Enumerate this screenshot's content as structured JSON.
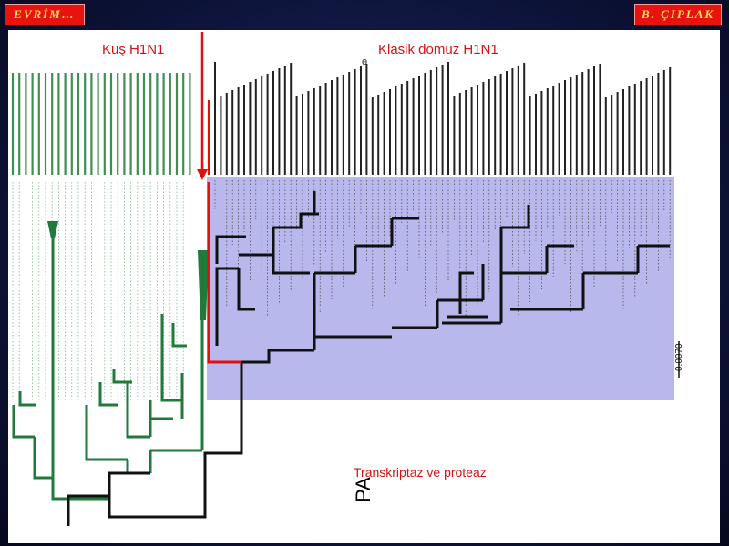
{
  "header": {
    "left_badge": "EVRİM…",
    "right_badge": "B. ÇIPLAK"
  },
  "labels": {
    "avian": "Kuş H1N1",
    "swine": "Klasik domuz H1N1",
    "caption": "Transkriptaz ve proteaz",
    "segment": "PA",
    "scale": "0.0070",
    "stray_mark": "ɵ"
  },
  "colors": {
    "background": "#0f1640",
    "badge": "#e8130f",
    "badge_text": "#ffe066",
    "annotation": "#d81212",
    "avian_clade": "#1f7a3c",
    "swine_highlight": "#9a9ae6",
    "arrow": "#e01010"
  }
}
